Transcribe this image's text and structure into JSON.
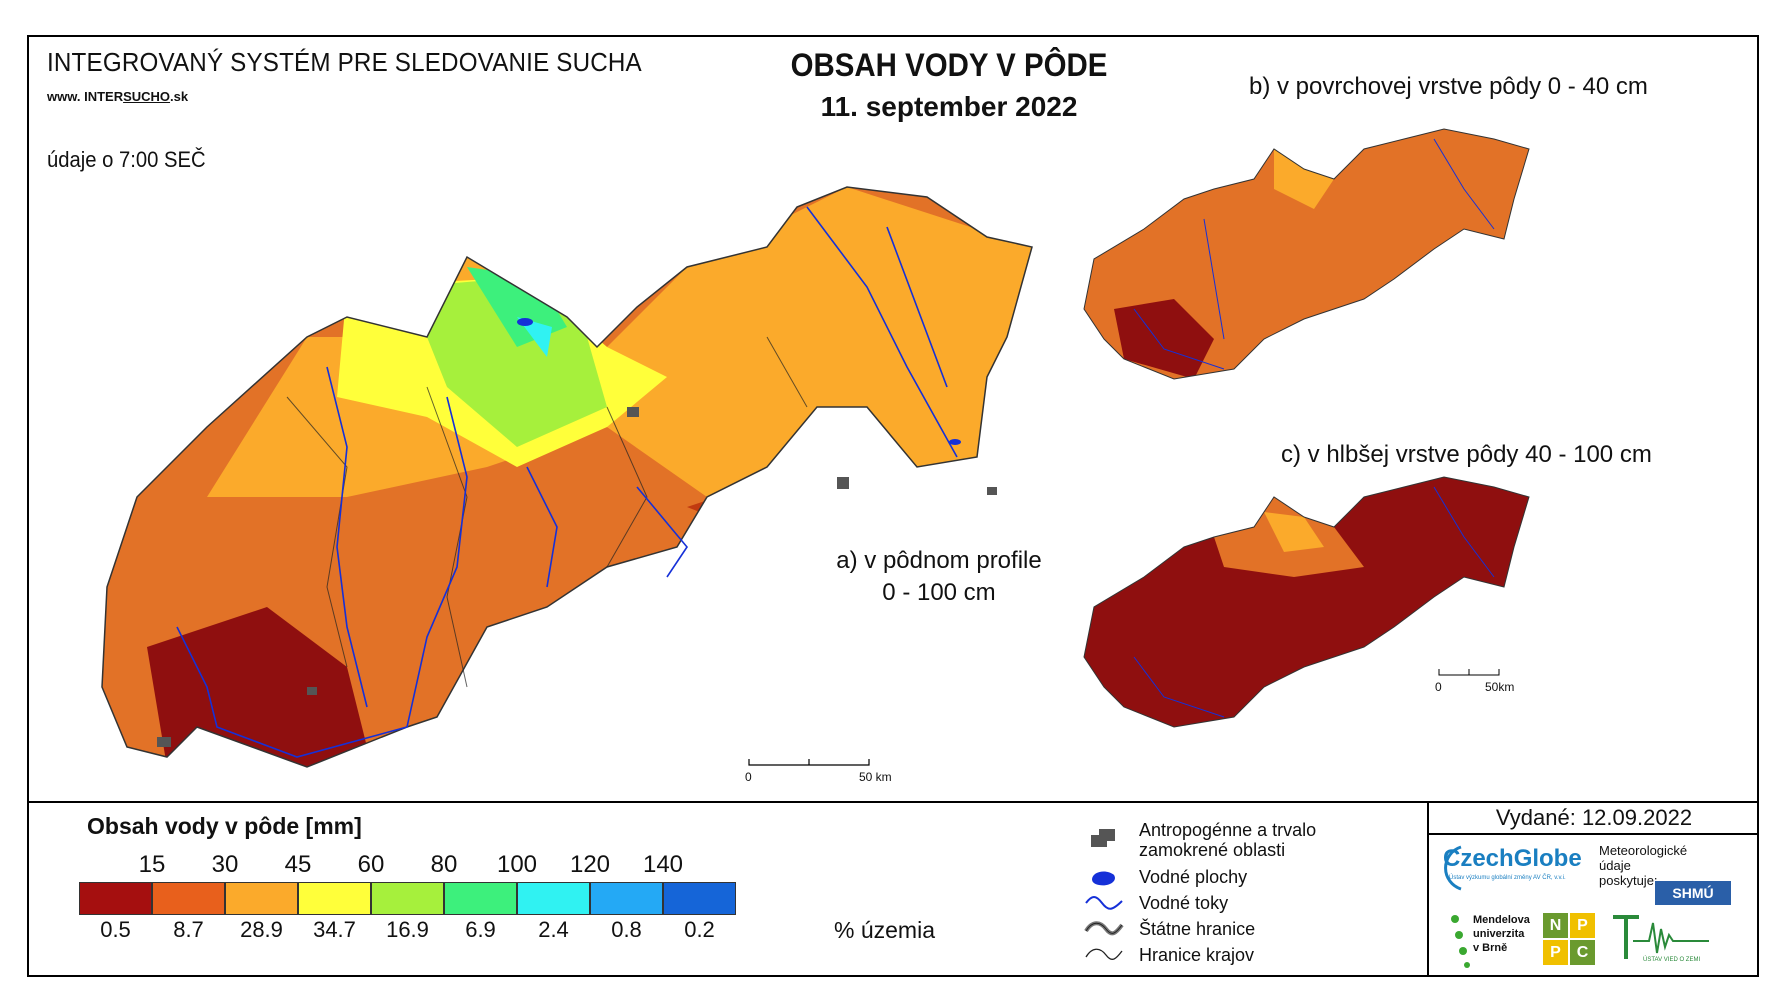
{
  "header": {
    "system_title": "INTEGROVANÝ SYSTÉM PRE SLEDOVANIE SUCHA",
    "website_prefix": "www. INTER",
    "website_sucho": "SUCHO",
    "website_suffix": ".sk",
    "observation_time": "údaje o 7:00 SEČ",
    "main_title": "OBSAH VODY V PÔDE",
    "date": "11. september 2022"
  },
  "panels": {
    "a_line1": "a) v pôdnom profile",
    "a_line2": "0 - 100 cm",
    "b": "b) v povrchovej vrstve pôdy 0 - 40 cm",
    "c": "c) v hlbšej vrstve pôdy 40 - 100 cm"
  },
  "scale_bar": {
    "main_start": "0",
    "main_end": "50 km",
    "small_start": "0",
    "small_end": "50km"
  },
  "legend": {
    "title": "Obsah vody v pôde  [mm]",
    "thresholds": [
      "15",
      "30",
      "45",
      "60",
      "80",
      "100",
      "120",
      "140"
    ],
    "colors": [
      "#a50f0f",
      "#e8601c",
      "#fbaa2b",
      "#ffff3a",
      "#a6f03c",
      "#3df07c",
      "#30f2f2",
      "#24a9f5",
      "#1565d8"
    ],
    "percentages": [
      "0.5",
      "8.7",
      "28.9",
      "34.7",
      "16.9",
      "6.9",
      "2.4",
      "0.8",
      "0.2"
    ],
    "percent_unit": "% územia"
  },
  "key": {
    "anthropogenic": "Antropogénne a trvalo",
    "anthropogenic_2": "zamokrené oblasti",
    "water_bodies": "Vodné plochy",
    "streams": "Vodné toky",
    "state_borders": "Štátne hranice",
    "region_borders": "Hranice krajov"
  },
  "issued": "Vydané: 12.09.2022",
  "logos": {
    "czechglobe": "CzechGlobe",
    "czechglobe_sub": "Ústav výzkumu globální změny AV ČR, v.v.i.",
    "met_line1": "Meteorologické",
    "met_line2": "údaje",
    "met_line3": "poskytuje:",
    "shmu": "SHMÚ",
    "mendel_1": "Mendelova",
    "mendel_2": "univerzita",
    "mendel_3": "v Brně",
    "npc": [
      "N",
      "P",
      "P",
      "C"
    ],
    "uvz": "ÚSTAV VIED O ZEMI"
  }
}
